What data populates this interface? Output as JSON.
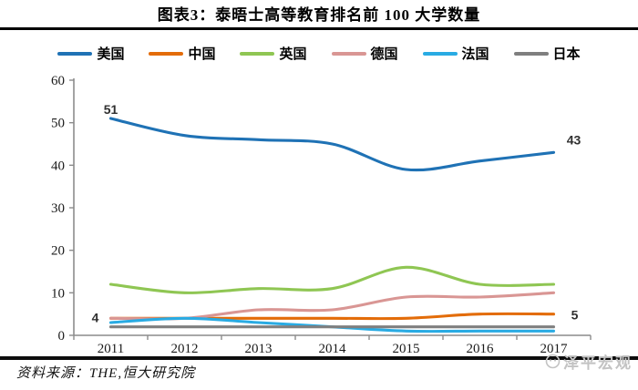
{
  "title": "图表3：泰晤士高等教育排名前 100 大学数量",
  "source_note": "资料来源：THE,恒大研究院",
  "watermark": "泽平宏观",
  "chart_data": {
    "type": "line",
    "title": "图表3：泰晤士高等教育排名前 100 大学数量",
    "categories": [
      "2011",
      "2012",
      "2013",
      "2014",
      "2015",
      "2016",
      "2017"
    ],
    "series": [
      {
        "name": "美国",
        "color": "#1F72B5",
        "values": [
          51,
          47,
          46,
          45,
          39,
          41,
          43
        ]
      },
      {
        "name": "中国",
        "color": "#E36C09",
        "values": [
          4,
          4,
          4,
          4,
          4,
          5,
          5
        ]
      },
      {
        "name": "英国",
        "color": "#8FC653",
        "values": [
          12,
          10,
          11,
          11,
          16,
          12,
          12
        ]
      },
      {
        "name": "德国",
        "color": "#D99694",
        "values": [
          4,
          4,
          6,
          6,
          9,
          9,
          10
        ]
      },
      {
        "name": "法国",
        "color": "#29ABE3",
        "values": [
          3,
          4,
          3,
          2,
          1,
          1,
          1
        ]
      },
      {
        "name": "日本",
        "color": "#7F7F7F",
        "values": [
          2,
          2,
          2,
          2,
          2,
          2,
          2
        ]
      }
    ],
    "ylim": [
      0,
      60
    ],
    "yticks": [
      0,
      10,
      20,
      30,
      40,
      50,
      60
    ],
    "grid": false,
    "smooth": true,
    "legend_position": "top",
    "point_labels": [
      {
        "series": "美国",
        "index": 0,
        "text": "51"
      },
      {
        "series": "美国",
        "index": 6,
        "text": "43"
      },
      {
        "series": "中国",
        "index": 0,
        "text": "4"
      },
      {
        "series": "中国",
        "index": 6,
        "text": "5"
      }
    ]
  }
}
